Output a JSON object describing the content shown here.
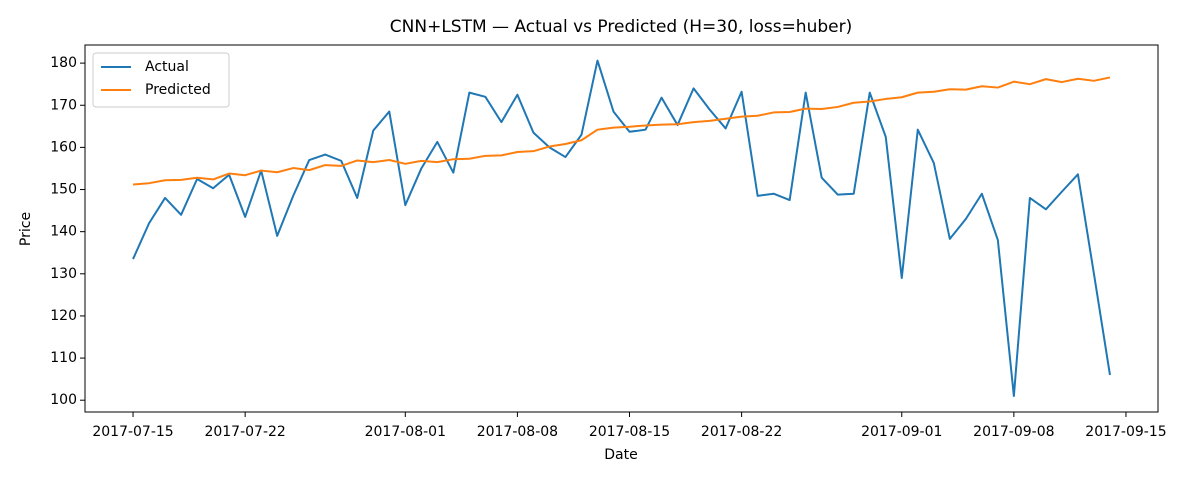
{
  "chart_data": {
    "type": "line",
    "title": "CNN+LSTM — Actual vs Predicted (H=30, loss=huber)",
    "x_label": "Date",
    "y_label": "Price",
    "x": [
      "2017-07-15",
      "2017-07-16",
      "2017-07-17",
      "2017-07-18",
      "2017-07-19",
      "2017-07-20",
      "2017-07-21",
      "2017-07-22",
      "2017-07-23",
      "2017-07-24",
      "2017-07-25",
      "2017-07-26",
      "2017-07-27",
      "2017-07-28",
      "2017-07-29",
      "2017-07-30",
      "2017-07-31",
      "2017-08-01",
      "2017-08-02",
      "2017-08-03",
      "2017-08-04",
      "2017-08-05",
      "2017-08-06",
      "2017-08-07",
      "2017-08-08",
      "2017-08-09",
      "2017-08-10",
      "2017-08-11",
      "2017-08-12",
      "2017-08-13",
      "2017-08-14",
      "2017-08-15",
      "2017-08-16",
      "2017-08-17",
      "2017-08-18",
      "2017-08-19",
      "2017-08-20",
      "2017-08-21",
      "2017-08-22",
      "2017-08-23",
      "2017-08-24",
      "2017-08-25",
      "2017-08-26",
      "2017-08-27",
      "2017-08-28",
      "2017-08-29",
      "2017-08-30",
      "2017-08-31",
      "2017-09-01",
      "2017-09-02",
      "2017-09-03",
      "2017-09-04",
      "2017-09-05",
      "2017-09-06",
      "2017-09-07",
      "2017-09-08",
      "2017-09-09",
      "2017-09-10",
      "2017-09-11",
      "2017-09-12",
      "2017-09-13",
      "2017-09-14"
    ],
    "series": [
      {
        "name": "Actual",
        "color": "#1f77b4",
        "values": [
          133.5,
          142,
          148,
          144,
          152.5,
          150.3,
          153.5,
          143.5,
          154.5,
          139,
          148.5,
          157,
          158.3,
          156.8,
          148,
          164,
          168.5,
          146.3,
          155,
          161.3,
          154,
          173,
          172,
          166,
          172.5,
          163.5,
          160,
          157.7,
          163,
          180.6,
          168.5,
          163.7,
          164.2,
          171.8,
          165.3,
          174,
          169,
          164.5,
          173.2,
          148.5,
          149,
          147.5,
          173,
          152.8,
          148.8,
          149,
          173,
          162.5,
          129,
          164.2,
          156.3,
          138.3,
          143,
          149,
          138,
          101,
          148,
          145.3,
          149.5,
          153.6,
          130,
          106
        ]
      },
      {
        "name": "Predicted",
        "color": "#ff7f0e",
        "values": [
          151.2,
          151.5,
          152.2,
          152.3,
          152.8,
          152.4,
          153.8,
          153.4,
          154.5,
          154.1,
          155.1,
          154.6,
          155.8,
          155.6,
          156.9,
          156.5,
          157,
          156.1,
          156.8,
          156.5,
          157.2,
          157.3,
          158,
          158.1,
          158.9,
          159.1,
          160.2,
          160.8,
          161.7,
          164.2,
          164.7,
          164.9,
          165.2,
          165.4,
          165.5,
          166,
          166.3,
          166.8,
          167.3,
          167.5,
          168.3,
          168.4,
          169.2,
          169.1,
          169.6,
          170.6,
          170.9,
          171.5,
          171.9,
          173,
          173.2,
          173.8,
          173.7,
          174.5,
          174.2,
          175.6,
          175,
          176.2,
          175.5,
          176.3,
          175.8,
          176.6
        ]
      }
    ],
    "xlim": [
      "2017-07-12",
      "2017-09-17"
    ],
    "xticks": [
      "2017-07-15",
      "2017-07-22",
      "2017-08-01",
      "2017-08-08",
      "2017-08-15",
      "2017-08-22",
      "2017-09-01",
      "2017-09-08",
      "2017-09-15"
    ],
    "ylim": [
      97.2,
      184.3
    ],
    "yticks": [
      100,
      110,
      120,
      130,
      140,
      150,
      160,
      170,
      180
    ],
    "legend": "upper-left",
    "grid": false
  }
}
